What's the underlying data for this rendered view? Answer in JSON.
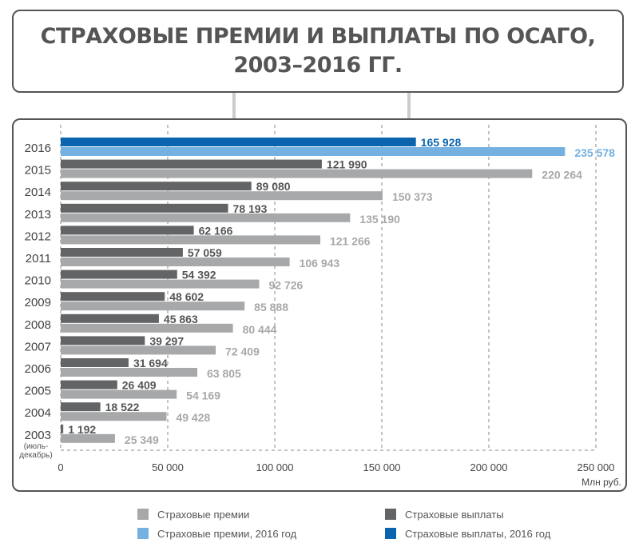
{
  "chart_data": {
    "type": "bar",
    "orientation": "horizontal",
    "title": "СТРАХОВЫЕ ПРЕМИИ И ВЫПЛАТЫ ПО ОСАГО,\n2003–2016 ГГ.",
    "xlabel": "Млн руб.",
    "xlim": [
      0,
      250000
    ],
    "xticks": [
      0,
      50000,
      100000,
      150000,
      200000,
      250000
    ],
    "xtick_labels": [
      "0",
      "50 000",
      "100 000",
      "150 000",
      "200 000",
      "250 000"
    ],
    "categories": [
      "2016",
      "2015",
      "2014",
      "2013",
      "2012",
      "2011",
      "2010",
      "2009",
      "2008",
      "2007",
      "2006",
      "2005",
      "2004",
      "2003"
    ],
    "category_note": {
      "2003": "(июль-\nдекабрь)"
    },
    "series": [
      {
        "name": "Страховые выплаты",
        "values": [
          165928,
          121990,
          89080,
          78193,
          62166,
          57059,
          54392,
          48602,
          45863,
          39297,
          31694,
          26409,
          18522,
          1192
        ],
        "labels": [
          "165 928",
          "121 990",
          "89 080",
          "78 193",
          "62 166",
          "57 059",
          "54 392",
          "48 602",
          "45 863",
          "39 297",
          "31 694",
          "26 409",
          "18 522",
          "1 192"
        ]
      },
      {
        "name": "Страховые премии",
        "values": [
          235578,
          220264,
          150373,
          135190,
          121266,
          106943,
          92726,
          85888,
          80444,
          72409,
          63805,
          54169,
          49428,
          25349
        ],
        "labels": [
          "235 578",
          "220 264",
          "150 373",
          "135 190",
          "121 266",
          "106 943",
          "92 726",
          "85 888",
          "80 444",
          "72 409",
          "63 805",
          "54 169",
          "49 428",
          "25 349"
        ]
      }
    ],
    "legend": [
      {
        "label": "Страховые премии",
        "color": "#a7a8aa"
      },
      {
        "label": "Страховые выплаты",
        "color": "#636466"
      },
      {
        "label": "Страховые премии, 2016 год",
        "color": "#74b1e0"
      },
      {
        "label": "Страховые выплаты, 2016 год",
        "color": "#0a64ae"
      }
    ],
    "grid": "vertical dashed",
    "legend_position": "bottom"
  }
}
